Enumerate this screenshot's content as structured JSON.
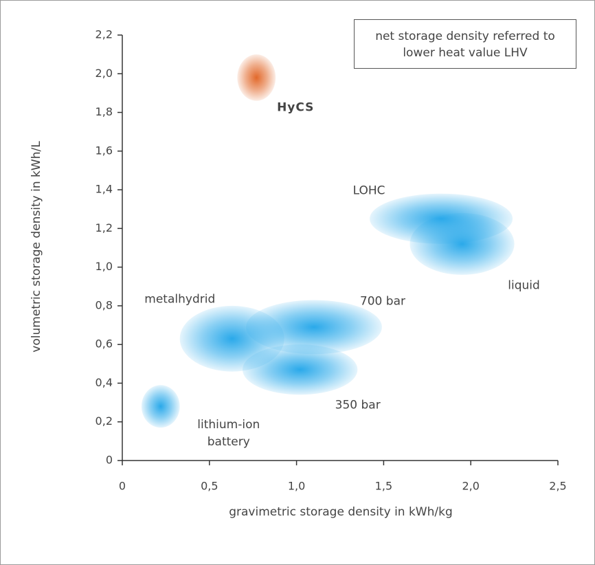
{
  "chart_data": {
    "type": "ellipse",
    "annotation": "net storage density referred to lower heat value LHV",
    "xlabel": "gravimetric storage density in kWh/kg",
    "ylabel": "volumetric storage density in kWh/L",
    "xlim": [
      0,
      2.5
    ],
    "xticks": [
      0,
      {
        "value": 0.5,
        "label": "0,5"
      },
      {
        "value": 1.0,
        "label": "1,0"
      },
      {
        "value": 1.5,
        "label": "1,5"
      },
      {
        "value": 2.0,
        "label": "2,0"
      },
      {
        "value": 2.5,
        "label": "2,5"
      }
    ],
    "ylim": [
      0,
      2.2
    ],
    "yticks": [
      0,
      {
        "value": 0.2,
        "label": "0,2"
      },
      {
        "value": 0.4,
        "label": "0,4"
      },
      {
        "value": 0.6,
        "label": "0,6"
      },
      {
        "value": 0.8,
        "label": "0,8"
      },
      {
        "value": 1.0,
        "label": "1,0"
      },
      {
        "value": 1.2,
        "label": "1,2"
      },
      {
        "value": 1.4,
        "label": "1,4"
      },
      {
        "value": 1.6,
        "label": "1,6"
      },
      {
        "value": 1.8,
        "label": "1,8"
      },
      {
        "value": 2.0,
        "label": "2,0"
      },
      {
        "value": 2.2,
        "label": "2,2"
      }
    ],
    "series": [
      {
        "name": "HyCS",
        "color": "#e2692b",
        "x": 0.77,
        "y": 1.98,
        "x_spread": 0.11,
        "y_spread": 0.12
      },
      {
        "name": "LOHC",
        "color": "#2aa9ea",
        "x": 1.83,
        "y": 1.25,
        "x_spread": 0.41,
        "y_spread": 0.13
      },
      {
        "name": "liquid",
        "color": "#2aa9ea",
        "x": 1.95,
        "y": 1.12,
        "x_spread": 0.3,
        "y_spread": 0.16
      },
      {
        "name": "700 bar",
        "color": "#2aa9ea",
        "x": 1.1,
        "y": 0.69,
        "x_spread": 0.39,
        "y_spread": 0.14
      },
      {
        "name": "metalhydrid",
        "color": "#2aa9ea",
        "x": 0.63,
        "y": 0.63,
        "x_spread": 0.3,
        "y_spread": 0.17
      },
      {
        "name": "350 bar",
        "color": "#2aa9ea",
        "x": 1.02,
        "y": 0.47,
        "x_spread": 0.33,
        "y_spread": 0.13
      },
      {
        "name": "lithium-ion battery",
        "color": "#2aa9ea",
        "x": 0.22,
        "y": 0.28,
        "x_spread": 0.11,
        "y_spread": 0.11
      }
    ]
  }
}
